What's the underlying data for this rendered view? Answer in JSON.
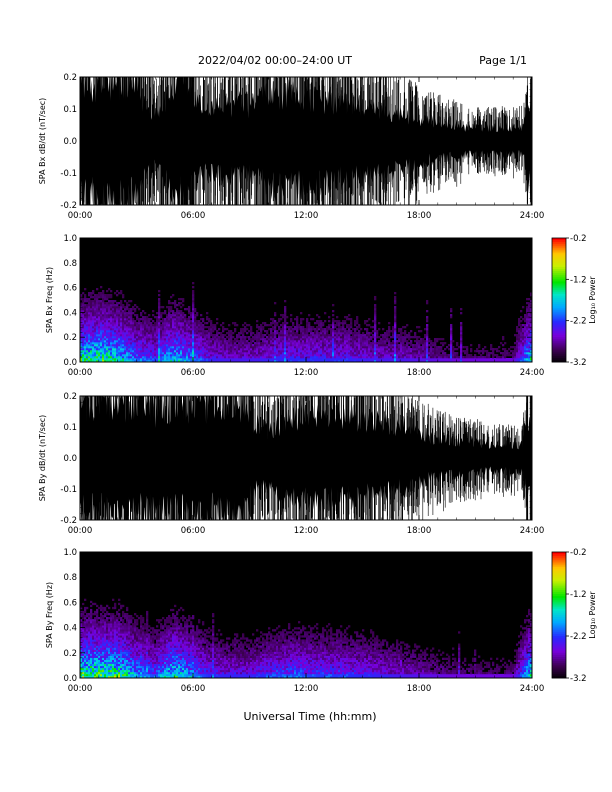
{
  "header": {
    "title": "2022/04/02  00:00–24:00 UT",
    "page": "Page 1/1"
  },
  "xlabel": "Universal Time (hh:mm)",
  "colors": {
    "trace": "#000000",
    "background": "#ffffff"
  },
  "chart_data": [
    {
      "type": "line",
      "name": "SPA Bx dB/dt",
      "ylabel": "SPA Bx dB/dt (nT/sec)",
      "x_ticks": [
        "00:00",
        "06:00",
        "12:00",
        "18:00",
        "24:00"
      ],
      "y_ticks": [
        "0.2",
        "0.1",
        "0.0",
        "-0.1",
        "-0.2"
      ],
      "xlim_hours": [
        0,
        24
      ],
      "ylim": [
        -0.2,
        0.2
      ],
      "envelope": {
        "hours": [
          0,
          0.5,
          1,
          1.5,
          2,
          2.5,
          3,
          3.5,
          4,
          4.5,
          5,
          5.5,
          6,
          6.5,
          7,
          7.5,
          8,
          8.5,
          9,
          9.5,
          10,
          10.5,
          11,
          11.5,
          12,
          12.5,
          13,
          13.5,
          14,
          14.5,
          15,
          15.5,
          16,
          16.5,
          17,
          17.5,
          18,
          18.5,
          19,
          19.5,
          20,
          20.5,
          21,
          21.5,
          22,
          22.5,
          23,
          23.5,
          24
        ],
        "amplitude": [
          0.2,
          0.2,
          0.2,
          0.2,
          0.2,
          0.2,
          0.2,
          0.12,
          0.1,
          0.14,
          0.2,
          0.2,
          0.16,
          0.12,
          0.12,
          0.13,
          0.13,
          0.14,
          0.13,
          0.15,
          0.16,
          0.17,
          0.17,
          0.16,
          0.16,
          0.16,
          0.15,
          0.14,
          0.14,
          0.13,
          0.13,
          0.12,
          0.11,
          0.11,
          0.1,
          0.09,
          0.08,
          0.07,
          0.07,
          0.06,
          0.06,
          0.05,
          0.05,
          0.05,
          0.05,
          0.05,
          0.05,
          0.05,
          0.2
        ]
      }
    },
    {
      "type": "heatmap",
      "name": "SPA Bx Freq",
      "ylabel": "SPA Bx Freq (Hz)",
      "colorbar_label": "Log₁₀ Power",
      "colorbar_ticks": [
        "-0.2",
        "-1.2",
        "-2.2",
        "-3.2"
      ],
      "color_range": [
        -3.2,
        -0.2
      ],
      "x_ticks": [
        "00:00",
        "06:00",
        "12:00",
        "18:00",
        "24:00"
      ],
      "y_ticks": [
        "1.0",
        "0.8",
        "0.6",
        "0.4",
        "0.2",
        "0.0"
      ],
      "xlim_hours": [
        0,
        24
      ],
      "ylim": [
        0,
        1.0
      ],
      "activity": {
        "hours": [
          0,
          1,
          2,
          3,
          4,
          5,
          6,
          7,
          8,
          9,
          10,
          11,
          12,
          13,
          14,
          15,
          16,
          17,
          18,
          19,
          20,
          21,
          22,
          23,
          24
        ],
        "level": [
          0.9,
          1.0,
          0.9,
          0.6,
          0.5,
          0.8,
          0.6,
          0.4,
          0.35,
          0.35,
          0.4,
          0.45,
          0.45,
          0.45,
          0.45,
          0.4,
          0.35,
          0.35,
          0.3,
          0.25,
          0.2,
          0.2,
          0.2,
          0.2,
          0.9
        ]
      }
    },
    {
      "type": "line",
      "name": "SPA By dB/dt",
      "ylabel": "SPA By dB/dt (nT/sec)",
      "x_ticks": [
        "00:00",
        "06:00",
        "12:00",
        "18:00",
        "24:00"
      ],
      "y_ticks": [
        "0.2",
        "0.1",
        "0.0",
        "-0.1",
        "-0.2"
      ],
      "xlim_hours": [
        0,
        24
      ],
      "ylim": [
        -0.2,
        0.2
      ],
      "envelope": {
        "hours": [
          0,
          0.5,
          1,
          1.5,
          2,
          2.5,
          3,
          3.5,
          4,
          4.5,
          5,
          5.5,
          6,
          6.5,
          7,
          7.5,
          8,
          8.5,
          9,
          9.5,
          10,
          10.5,
          11,
          11.5,
          12,
          12.5,
          13,
          13.5,
          14,
          14.5,
          15,
          15.5,
          16,
          16.5,
          17,
          17.5,
          18,
          18.5,
          19,
          19.5,
          20,
          20.5,
          21,
          21.5,
          22,
          22.5,
          23,
          23.5,
          24
        ],
        "amplitude": [
          0.2,
          0.2,
          0.2,
          0.2,
          0.2,
          0.2,
          0.2,
          0.2,
          0.17,
          0.18,
          0.2,
          0.2,
          0.2,
          0.2,
          0.2,
          0.2,
          0.2,
          0.2,
          0.16,
          0.12,
          0.1,
          0.12,
          0.14,
          0.15,
          0.16,
          0.16,
          0.16,
          0.16,
          0.16,
          0.15,
          0.15,
          0.14,
          0.13,
          0.12,
          0.12,
          0.11,
          0.1,
          0.08,
          0.07,
          0.07,
          0.06,
          0.06,
          0.06,
          0.05,
          0.05,
          0.05,
          0.05,
          0.05,
          0.2
        ]
      }
    },
    {
      "type": "heatmap",
      "name": "SPA By Freq",
      "ylabel": "SPA By Freq (Hz)",
      "colorbar_label": "Log₁₀ Power",
      "colorbar_ticks": [
        "-0.2",
        "-1.2",
        "-2.2",
        "-3.2"
      ],
      "color_range": [
        -3.2,
        -0.2
      ],
      "x_ticks": [
        "00:00",
        "06:00",
        "12:00",
        "18:00",
        "24:00"
      ],
      "y_ticks": [
        "1.0",
        "0.8",
        "0.6",
        "0.4",
        "0.2",
        "0.0"
      ],
      "xlim_hours": [
        0,
        24
      ],
      "ylim": [
        0,
        1.0
      ],
      "activity": {
        "hours": [
          0,
          1,
          2,
          3,
          4,
          5,
          6,
          7,
          8,
          9,
          10,
          11,
          12,
          13,
          14,
          15,
          16,
          17,
          18,
          19,
          20,
          21,
          22,
          23,
          24
        ],
        "level": [
          1.0,
          1.0,
          1.0,
          0.7,
          0.55,
          0.9,
          0.65,
          0.45,
          0.4,
          0.4,
          0.5,
          0.55,
          0.55,
          0.5,
          0.5,
          0.45,
          0.4,
          0.35,
          0.3,
          0.25,
          0.2,
          0.2,
          0.2,
          0.2,
          0.9
        ]
      }
    }
  ]
}
